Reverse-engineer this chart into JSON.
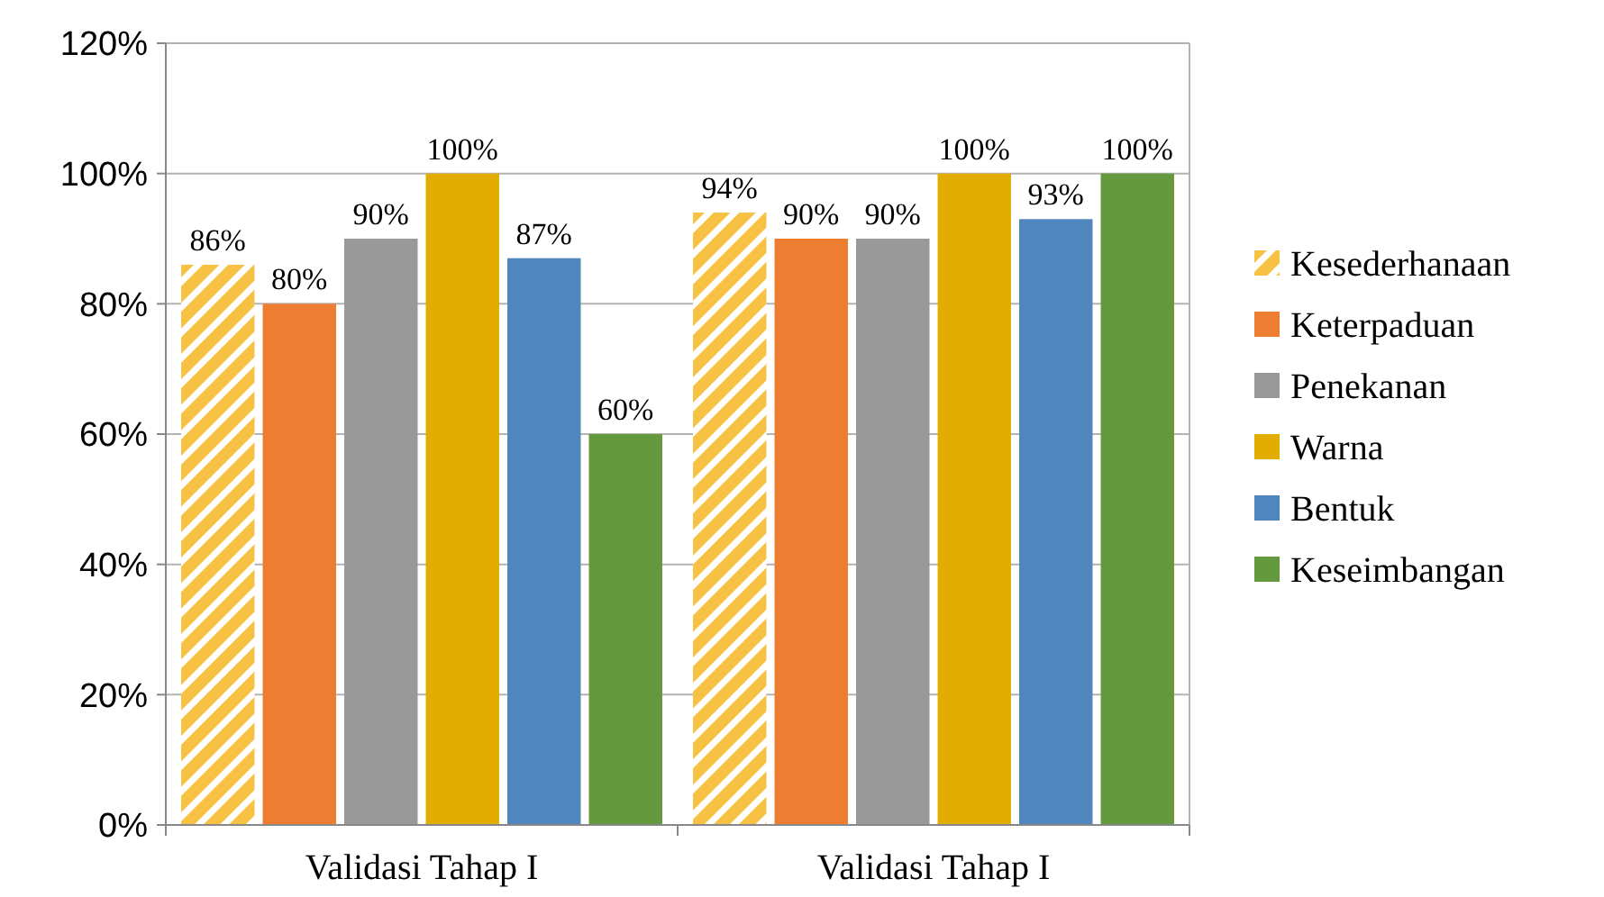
{
  "chart_data": {
    "type": "bar",
    "categories": [
      "Validasi Tahap I",
      "Validasi Tahap I"
    ],
    "series": [
      {
        "name": "Kesederhanaan",
        "color": "#f7c244",
        "values": [
          86,
          94
        ],
        "value_labels": [
          "86%",
          "94%"
        ]
      },
      {
        "name": "Keterpaduan",
        "color": "#ed7d31",
        "values": [
          80,
          90
        ],
        "value_labels": [
          "80%",
          "90%"
        ]
      },
      {
        "name": "Penekanan",
        "color": "#999999",
        "values": [
          90,
          90
        ],
        "value_labels": [
          "90%",
          "90%"
        ]
      },
      {
        "name": "Warna",
        "color": "#e3ac00",
        "values": [
          100,
          100
        ],
        "value_labels": [
          "100%",
          "100%"
        ]
      },
      {
        "name": "Bentuk",
        "color": "#4f86bd",
        "values": [
          87,
          93
        ],
        "value_labels": [
          "87%",
          "93%"
        ]
      },
      {
        "name": "Keseimbangan",
        "color": "#65993d",
        "values": [
          60,
          100
        ],
        "value_labels": [
          "60%",
          "100%"
        ]
      }
    ],
    "ylim": [
      0,
      120
    ],
    "yticks": [
      {
        "value": 0,
        "label": "0%"
      },
      {
        "value": 20,
        "label": "20%"
      },
      {
        "value": 40,
        "label": "40%"
      },
      {
        "value": 60,
        "label": "60%"
      },
      {
        "value": 80,
        "label": "80%"
      },
      {
        "value": 100,
        "label": "100%"
      },
      {
        "value": 120,
        "label": "120%"
      }
    ],
    "grid": "y",
    "legend": "right"
  }
}
